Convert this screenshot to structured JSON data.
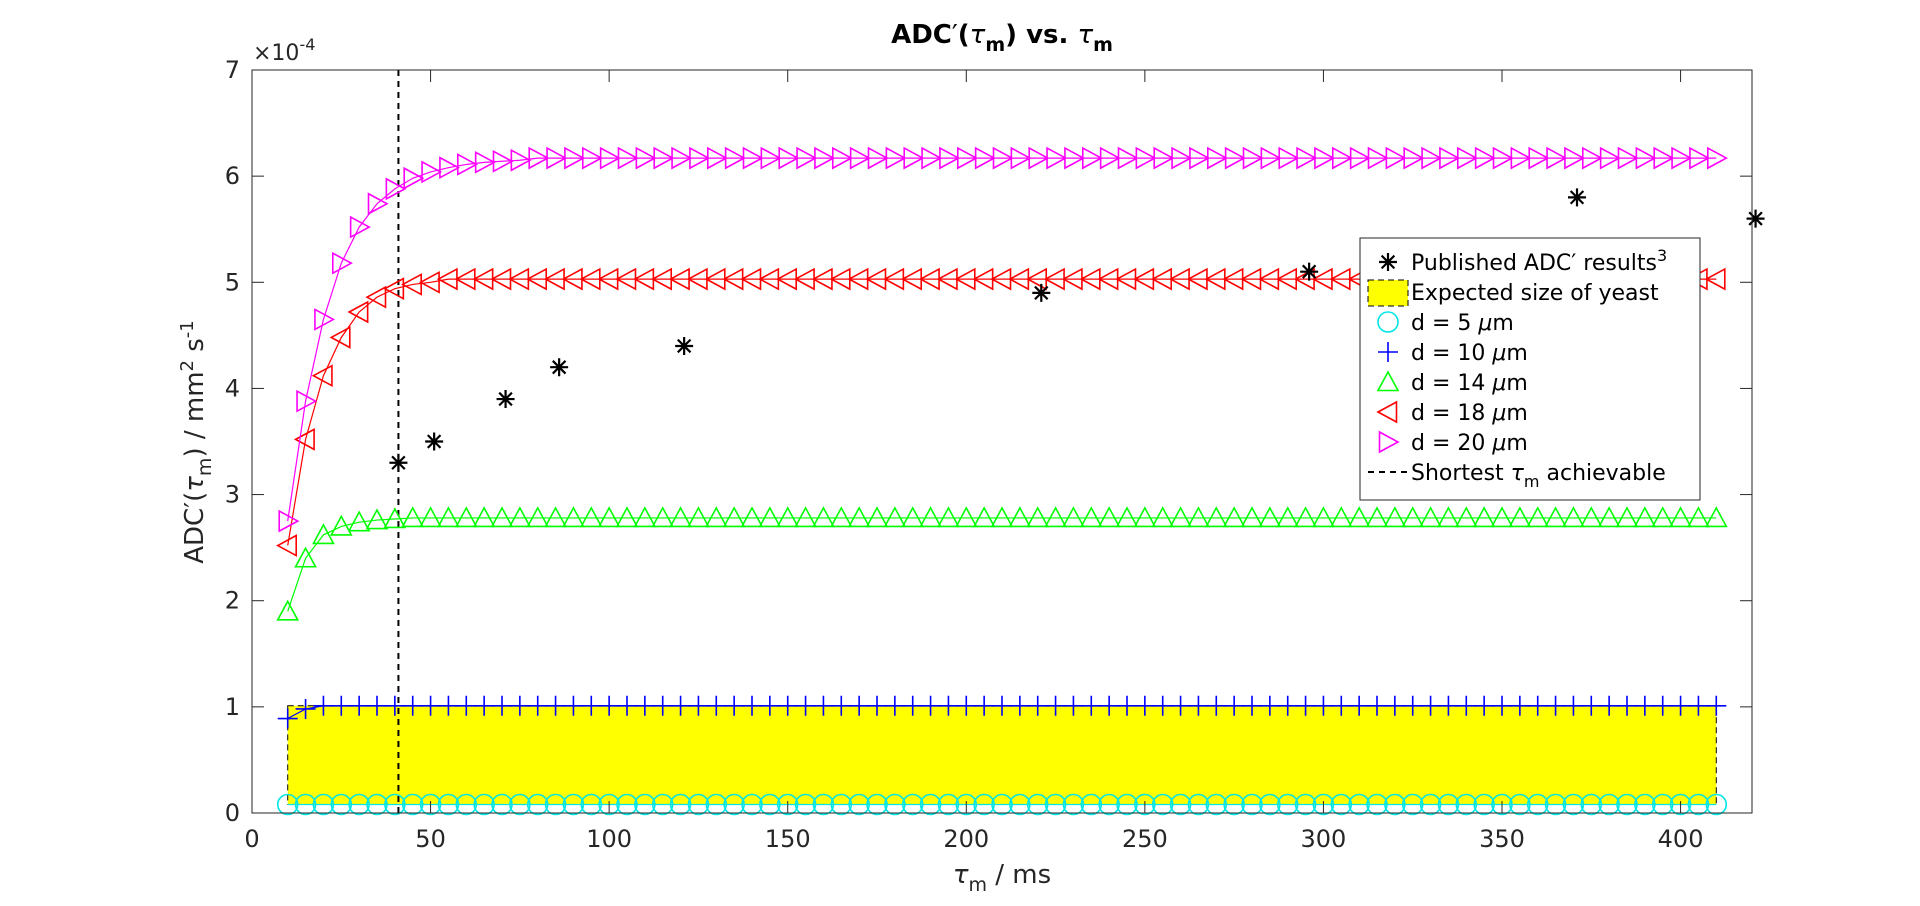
{
  "chart_data": {
    "type": "scatter",
    "title": {
      "prefix": "ADC",
      "prime": "′",
      "open": "(",
      "tau": "τ",
      "sub": "m",
      "close": ")",
      "vs": " vs. ",
      "tau2": "τ",
      "sub2": "m"
    },
    "xlabel": {
      "tau": "τ",
      "sub": "m",
      "rest": " / ms"
    },
    "ylabel": {
      "prefix": "ADC",
      "prime": "′",
      "open": "(",
      "tau": "τ",
      "sub": "m",
      "mid": ") / mm",
      "sup": "2",
      "rest": " s",
      "sup2": "-1"
    },
    "y_exponent": {
      "base": "×10",
      "exp": "-4"
    },
    "xlim": [
      0,
      420
    ],
    "ylim": [
      0,
      7
    ],
    "x_ticks": [
      0,
      50,
      100,
      150,
      200,
      250,
      300,
      350,
      400
    ],
    "y_ticks": [
      0,
      1,
      2,
      3,
      4,
      5,
      6,
      7
    ],
    "grid": false,
    "legend_position": "right-center",
    "x": [
      10,
      15,
      20,
      25,
      30,
      35,
      40,
      45,
      50,
      55,
      60,
      65,
      70,
      75,
      80,
      85,
      90,
      95,
      100,
      105,
      110,
      115,
      120,
      125,
      130,
      135,
      140,
      145,
      150,
      155,
      160,
      165,
      170,
      175,
      180,
      185,
      190,
      195,
      200,
      205,
      210,
      215,
      220,
      225,
      230,
      235,
      240,
      245,
      250,
      255,
      260,
      265,
      270,
      275,
      280,
      285,
      290,
      295,
      300,
      305,
      310,
      315,
      320,
      325,
      330,
      335,
      340,
      345,
      350,
      355,
      360,
      365,
      370,
      375,
      380,
      385,
      390,
      395,
      400,
      405,
      410
    ],
    "series": [
      {
        "name": {
          "prefix": "d = 5 ",
          "mu": "μ",
          "unit": "m"
        },
        "marker": "circle",
        "color": "#00e5e5",
        "constant": 0.08
      },
      {
        "name": {
          "prefix": "d = 10 ",
          "mu": "μ",
          "unit": "m"
        },
        "marker": "plus",
        "color": "#0000ff",
        "start": [
          0.89,
          0.98
        ],
        "constant": 1.01
      },
      {
        "name": {
          "prefix": "d = 14 ",
          "mu": "μ",
          "unit": "m"
        },
        "marker": "triangle-up",
        "color": "#00ff00",
        "start": [
          1.9,
          2.4,
          2.62,
          2.7,
          2.74,
          2.76,
          2.77
        ],
        "constant": 2.78
      },
      {
        "name": {
          "prefix": "d = 18 ",
          "mu": "μ",
          "unit": "m"
        },
        "marker": "triangle-left",
        "color": "#ff0000",
        "start": [
          2.52,
          3.52,
          4.12,
          4.48,
          4.72,
          4.86,
          4.94,
          4.98,
          5.0
        ],
        "constant": 5.03
      },
      {
        "name": {
          "prefix": "d = 20 ",
          "mu": "μ",
          "unit": "m"
        },
        "marker": "triangle-right",
        "color": "#ff00ff",
        "start": [
          2.75,
          3.88,
          4.65,
          5.18,
          5.52,
          5.74,
          5.88,
          5.98,
          6.04,
          6.08,
          6.11,
          6.13,
          6.14,
          6.15
        ],
        "constant": 6.17
      }
    ],
    "published": {
      "name": {
        "prefix": "Published ADC",
        "prime": "′",
        "rest": " results",
        "sup": "3"
      },
      "marker": "asterisk",
      "color": "#000000",
      "points": [
        [
          41,
          3.3
        ],
        [
          51,
          3.5
        ],
        [
          71,
          3.9
        ],
        [
          86,
          4.2
        ],
        [
          121,
          4.4
        ],
        [
          221,
          4.9
        ],
        [
          296,
          5.1
        ],
        [
          371,
          5.8
        ],
        [
          421,
          5.6
        ]
      ]
    },
    "yeast_region": {
      "name": "Expected size of yeast",
      "color": "#ffff00",
      "x_range": [
        10,
        410
      ],
      "y_range": [
        0.08,
        1.01
      ]
    },
    "shortest_line": {
      "name": {
        "prefix": "Shortest ",
        "tau": "τ",
        "sub": "m",
        "rest": " achievable"
      },
      "x": 41,
      "color": "#000000"
    }
  }
}
